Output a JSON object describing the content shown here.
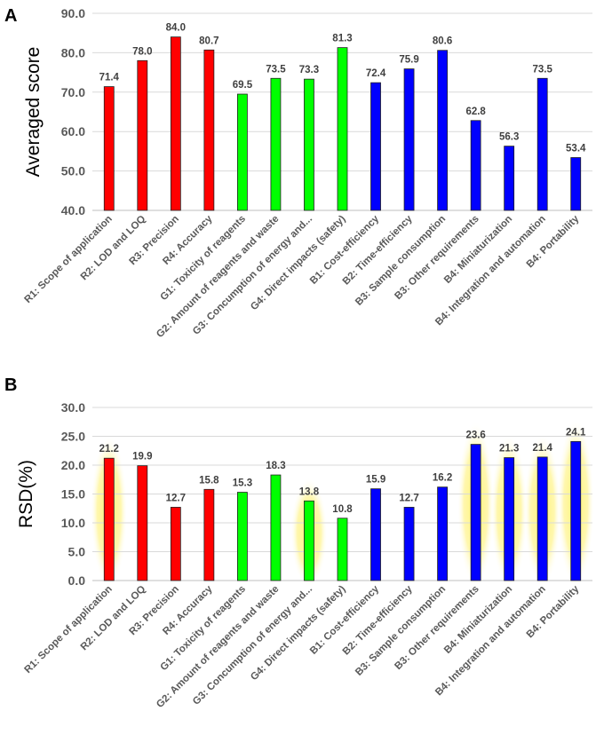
{
  "chart_data": [
    {
      "type": "bar",
      "panel": "A",
      "ylabel": "Averaged score",
      "xlabel": "",
      "ylim": [
        40,
        90
      ],
      "yticks": [
        "40.0",
        "50.0",
        "60.0",
        "70.0",
        "80.0",
        "90.0"
      ],
      "grid": true,
      "categories": [
        "R1: Scope of application",
        "R2: LOD and LOQ",
        "R3: Precision",
        "R4: Accuracy",
        "G1: Toxicity of reagents",
        "G2: Amount of reagents and waste",
        "G3: Concumption of energy and...",
        "G4: Direct impacts (safety)",
        "B1: Cost-efficiency",
        "B2: Time-efficiency",
        "B3: Sample consumption",
        "B3: Other requirements",
        "B4: Miniaturization",
        "B4: Integration and automation",
        "B4: Portability"
      ],
      "values": [
        71.4,
        78.0,
        84.0,
        80.7,
        69.5,
        73.5,
        73.3,
        81.3,
        72.4,
        75.9,
        80.6,
        62.8,
        56.3,
        73.5,
        53.4
      ],
      "value_labels": [
        "71.4",
        "78.0",
        "84.0",
        "80.7",
        "69.5",
        "73.5",
        "73.3",
        "81.3",
        "72.4",
        "75.9",
        "80.6",
        "62.8",
        "56.3",
        "73.5",
        "53.4"
      ],
      "bar_colors": [
        "#ff0000",
        "#ff0000",
        "#ff0000",
        "#ff0000",
        "#00ff00",
        "#00ff00",
        "#00ff00",
        "#00ff00",
        "#0000ff",
        "#0000ff",
        "#0000ff",
        "#0000ff",
        "#0000ff",
        "#0000ff",
        "#0000ff"
      ],
      "highlighted": []
    },
    {
      "type": "bar",
      "panel": "B",
      "ylabel": "RSD(%)",
      "xlabel": "",
      "ylim": [
        0,
        30
      ],
      "yticks": [
        "0.0",
        "5.0",
        "10.0",
        "15.0",
        "20.0",
        "25.0",
        "30.0"
      ],
      "grid": true,
      "categories": [
        "R1: Scope of application",
        "R2: LOD and LOQ",
        "R3: Precision",
        "R4: Accuracy",
        "G1: Toxicity of reagents",
        "G2: Amount of reagents and waste",
        "G3: Concumption of energy and...",
        "G4: Direct impacts (safety)",
        "B1: Cost-efficiency",
        "B2: Time-efficiency",
        "B3: Sample consumption",
        "B3: Other requirements",
        "B4: Miniaturization",
        "B4: Integration and automation",
        "B4: Portability"
      ],
      "values": [
        21.2,
        19.9,
        12.7,
        15.8,
        15.3,
        18.3,
        13.8,
        10.8,
        15.9,
        12.7,
        16.2,
        23.6,
        21.3,
        21.4,
        24.1
      ],
      "value_labels": [
        "21.2",
        "19.9",
        "12.7",
        "15.8",
        "15.3",
        "18.3",
        "13.8",
        "10.8",
        "15.9",
        "12.7",
        "16.2",
        "23.6",
        "21.3",
        "21.4",
        "24.1"
      ],
      "bar_colors": [
        "#ff0000",
        "#ff0000",
        "#ff0000",
        "#ff0000",
        "#00ff00",
        "#00ff00",
        "#00ff00",
        "#00ff00",
        "#0000ff",
        "#0000ff",
        "#0000ff",
        "#0000ff",
        "#0000ff",
        "#0000ff",
        "#0000ff"
      ],
      "highlighted": [
        0,
        6,
        11,
        12,
        13,
        14
      ]
    }
  ],
  "colors": {
    "reliability": "#ff0000",
    "greenness": "#00ff00",
    "blueness": "#0000ff",
    "highlight": "#ffff8c",
    "grid": "#d9d9d9",
    "axis": "#bfbfbf"
  }
}
